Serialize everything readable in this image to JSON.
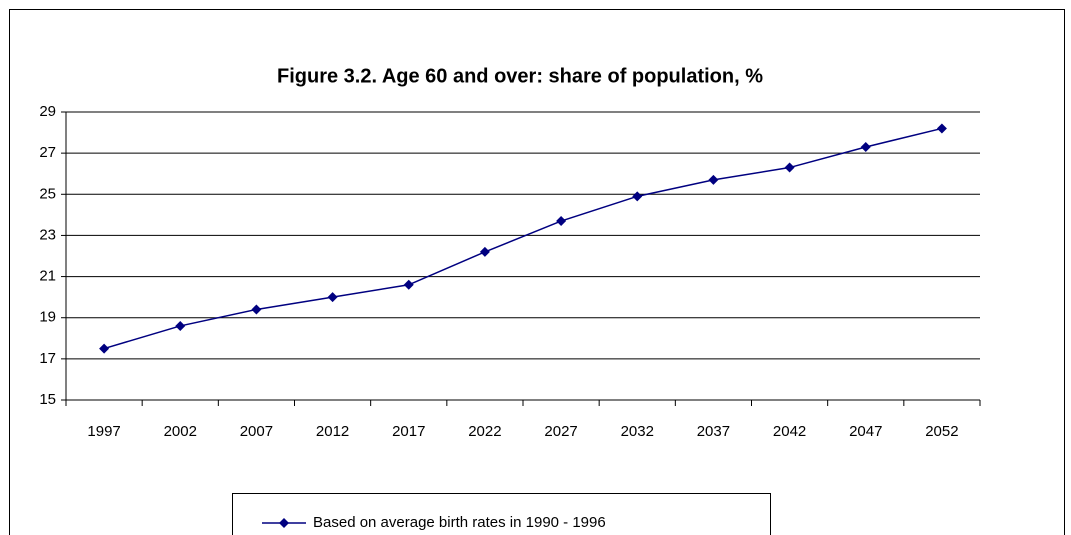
{
  "chart_data": {
    "type": "line",
    "title": "Figure 3.2. Age 60 and over: share of population, %",
    "categories": [
      "1997",
      "2002",
      "2007",
      "2012",
      "2017",
      "2022",
      "2027",
      "2032",
      "2037",
      "2042",
      "2047",
      "2052"
    ],
    "series": [
      {
        "name": "Based on average birth rates in 1990 - 1996",
        "color": "#000080",
        "values": [
          17.5,
          18.6,
          19.4,
          20.0,
          20.6,
          22.2,
          23.7,
          24.9,
          25.7,
          26.3,
          27.3,
          28.2
        ]
      }
    ],
    "ylim": [
      15,
      29
    ],
    "yticks": [
      15,
      17,
      19,
      21,
      23,
      25,
      27,
      29
    ],
    "grid": true,
    "legend": "bottom"
  }
}
